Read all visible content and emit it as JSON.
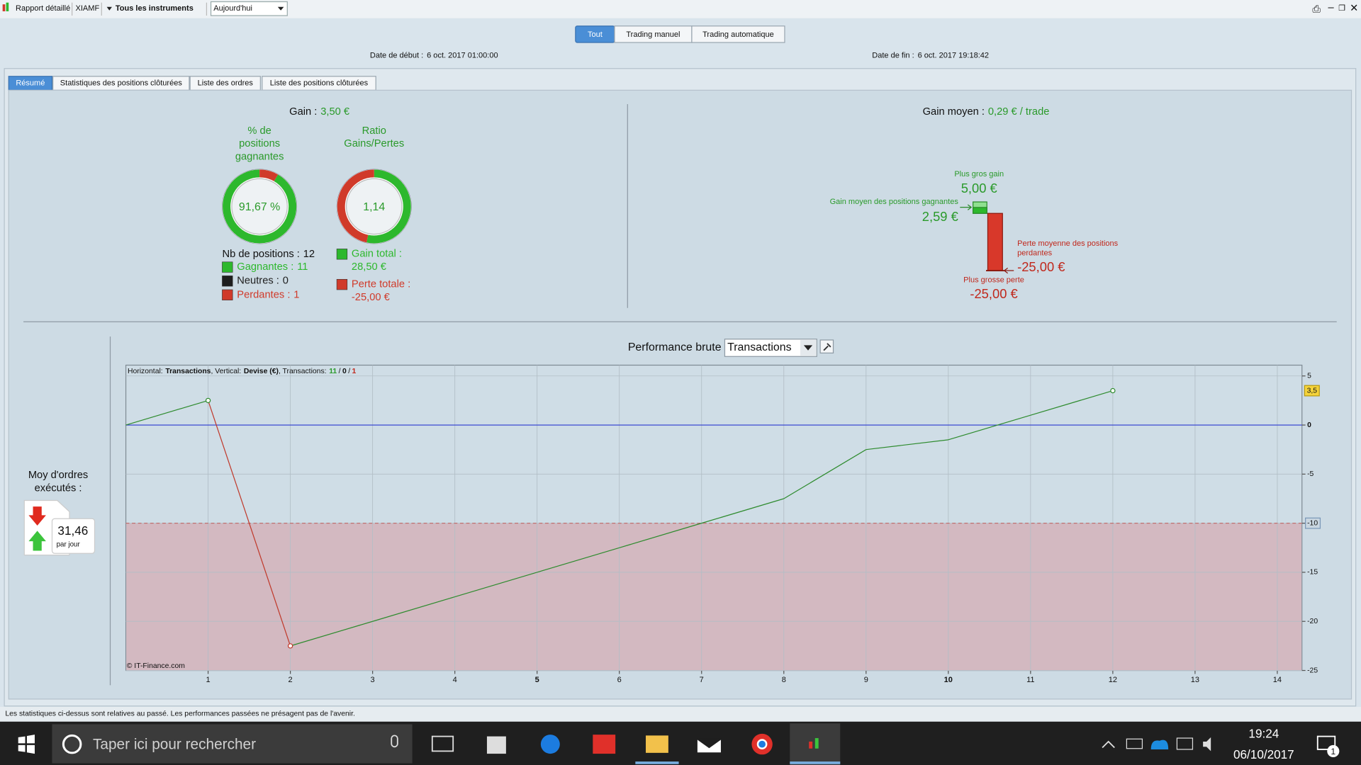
{
  "toolbar": {
    "report": "Rapport détaillé",
    "account": "XIAMF",
    "instruments": "Tous les instruments",
    "period": "Aujourd'hui"
  },
  "modes": [
    "Tout",
    "Trading manuel",
    "Trading automatique"
  ],
  "dates": {
    "start_label": "Date de début :",
    "start": "6 oct. 2017 01:00:00",
    "end_label": "Date de fin :",
    "end": "6 oct. 2017 19:18:42"
  },
  "tabs": [
    "Résumé",
    "Statistiques des positions clôturées",
    "Liste des ordres",
    "Liste des positions clôturées"
  ],
  "summary": {
    "gain_label": "Gain :",
    "gain": "3,50 €",
    "donuts": [
      {
        "title": [
          "% de",
          "positions",
          "gagnantes"
        ],
        "value": 91.67,
        "label": "91,67 %"
      },
      {
        "title": [
          "Ratio",
          "Gains/Pertes"
        ],
        "value": 1.14,
        "label": "1,14"
      }
    ],
    "positions": {
      "label": "Nb de positions :",
      "value": 12
    },
    "counts": [
      {
        "label": "Gagnantes :",
        "value": 11,
        "color": "#2db82d"
      },
      {
        "label": "Neutres :",
        "value": 0,
        "color": "#1e1e1e"
      },
      {
        "label": "Perdantes :",
        "value": 1,
        "color": "#d03a2a"
      }
    ],
    "totals": [
      {
        "label": "Gain total :",
        "value": "28,50 €",
        "color": "#2db82d"
      },
      {
        "label": "Perte totale :",
        "value": "-25,00 €",
        "color": "#d03a2a"
      }
    ],
    "avg_gain_label": "Gain moyen :",
    "avg_gain": "0,29 € / trade",
    "extremes": {
      "max_gain": {
        "label": "Plus gros gain",
        "value": 5,
        "value_label": "5,00 €"
      },
      "avg_win": {
        "label": "Gain moyen des positions gagnantes",
        "value": 2.59,
        "value_label": "2,59 €"
      },
      "avg_loss": {
        "label": [
          "Perte moyenne des positions",
          "perdantes"
        ],
        "value": -25,
        "value_label": "-25,00 €"
      },
      "max_loss": {
        "label": "Plus grosse perte",
        "value": -25,
        "value_label": "-25,00 €"
      }
    },
    "orders": {
      "label": [
        "Moy d'ordres",
        "exécutés :"
      ],
      "value": "31,46",
      "unit": "par jour"
    }
  },
  "chart_data": {
    "type": "line",
    "title": "Performance brute",
    "selector": "Transactions",
    "info": {
      "horizontal_label": "Horizontal:",
      "horizontal": "Transactions",
      "vertical_label": ", Vertical:",
      "vertical": "Devise (€)",
      "counts_label": ", Transactions:",
      "counts": [
        11,
        0,
        1
      ],
      "separator": "/"
    },
    "copyright": "© IT-Finance.com",
    "x": [
      0,
      1,
      2,
      3,
      4,
      5,
      6,
      7,
      8,
      9,
      10,
      11,
      12
    ],
    "values": [
      0,
      2.5,
      -22.5,
      -20,
      -17.5,
      -15,
      -12.5,
      -10,
      -7.5,
      -2.5,
      -1.5,
      1,
      3.5
    ],
    "color": "#2e8b2e",
    "down_color": "#c0392b",
    "xlim": [
      0,
      14.3
    ],
    "xticks": [
      1,
      2,
      3,
      4,
      5,
      6,
      7,
      8,
      9,
      10,
      11,
      12,
      13,
      14
    ],
    "ylim": [
      -25,
      6.1
    ],
    "yticks": [
      5,
      0,
      -5,
      -10,
      -15,
      -20,
      -25
    ],
    "threshold": -10,
    "last_value_label": "3,5",
    "grid": true
  },
  "footer": "Les statistiques ci-dessus sont relatives au passé. Les performances passées ne présagent pas de l'avenir.",
  "taskbar": {
    "search": "Taper ici pour rechercher",
    "time": "19:24",
    "date": "06/10/2017",
    "notifications": 1
  }
}
